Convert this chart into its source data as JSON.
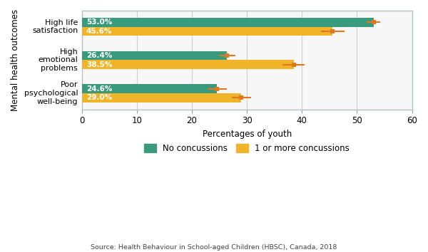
{
  "categories": [
    "Poor\npsychological\nwell-being",
    "High\nemotional\nproblems",
    "High life\nsatisfaction"
  ],
  "no_concussion_values": [
    24.6,
    26.4,
    53.0
  ],
  "concussion_values": [
    29.0,
    38.5,
    45.6
  ],
  "no_concussion_errors_lo": [
    1.8,
    1.5,
    1.2
  ],
  "no_concussion_errors_hi": [
    1.8,
    1.5,
    1.2
  ],
  "concussion_errors_lo": [
    1.8,
    2.0,
    2.2
  ],
  "concussion_errors_hi": [
    1.8,
    2.0,
    2.2
  ],
  "no_concussion_color": "#3a9a7c",
  "concussion_color": "#f0b429",
  "error_color": "#e07820",
  "bar_height": 0.38,
  "xlim": [
    0,
    60
  ],
  "xticks": [
    0,
    10,
    20,
    30,
    40,
    50,
    60
  ],
  "xlabel": "Percentages of youth",
  "ylabel": "Mental health outcomes",
  "legend_no": "No concussions",
  "legend_yes": "1 or more concussions",
  "source": "Source: Health Behaviour in School-aged Children (HBSC), Canada, 2018",
  "background_color": "#ffffff",
  "plot_bg_color": "#f7f7f7",
  "grid_color": "#d0d0d0",
  "border_color": "#b0c4c4",
  "label_no_values": [
    "24.6%",
    "26.4%",
    "53.0%"
  ],
  "label_yes_values": [
    "29.0%",
    "38.5%",
    "45.6%"
  ]
}
